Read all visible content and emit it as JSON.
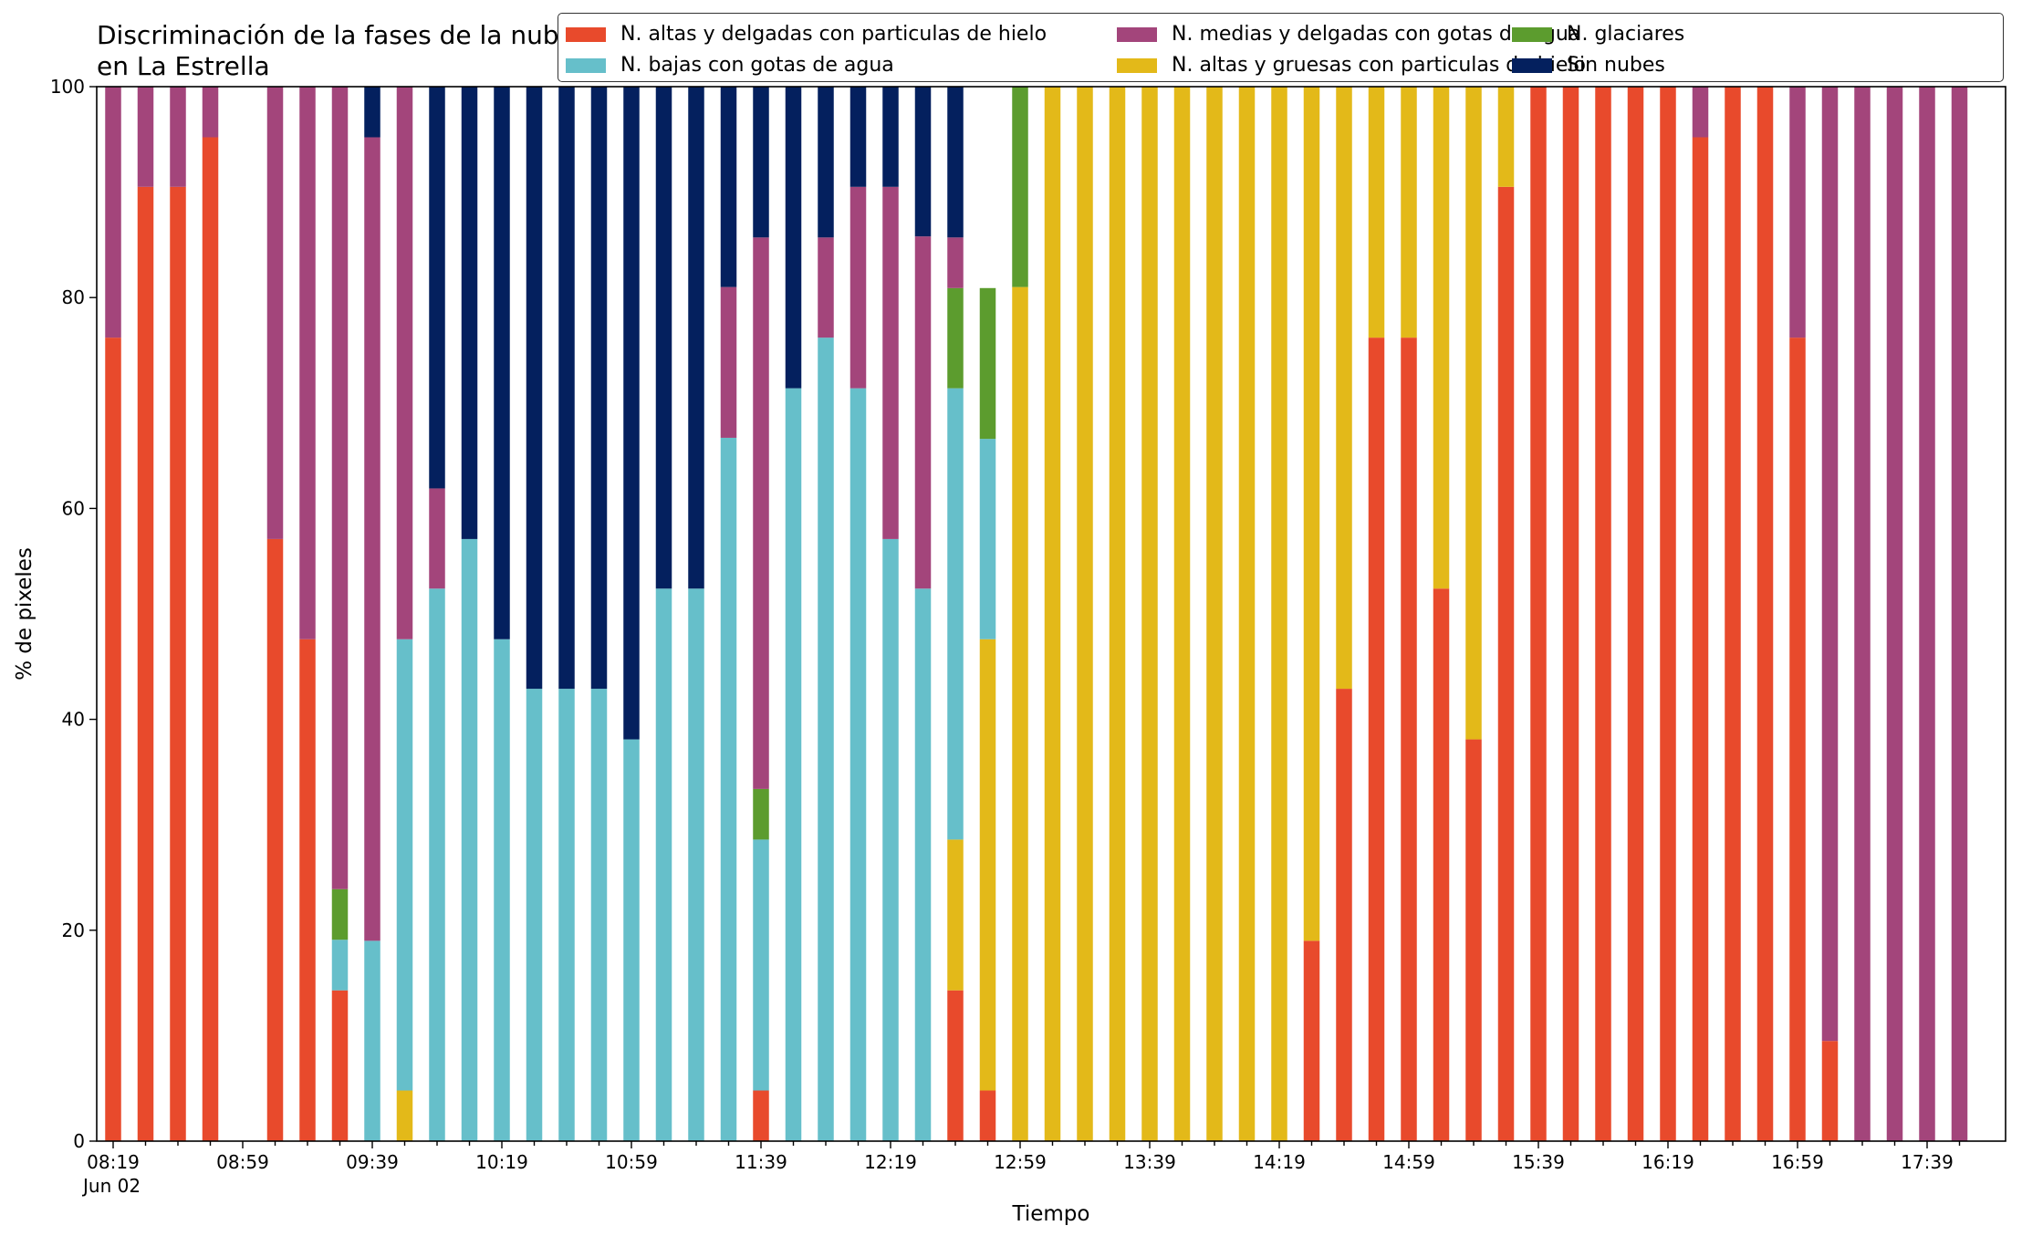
{
  "chart_data": {
    "type": "bar",
    "stacked": true,
    "title": "Discriminación de la fases de la nube en La Estrella",
    "xlabel": "Tiempo",
    "ylabel": "% de pixeles",
    "ylim": [
      0,
      100
    ],
    "yticks": [
      0,
      20,
      40,
      60,
      80,
      100
    ],
    "xtick_labels": [
      {
        "index": 0,
        "label": "08:19"
      },
      {
        "index": 4,
        "label": "08:59"
      },
      {
        "index": 8,
        "label": "09:39"
      },
      {
        "index": 12,
        "label": "10:19"
      },
      {
        "index": 16,
        "label": "10:59"
      },
      {
        "index": 20,
        "label": "11:39"
      },
      {
        "index": 24,
        "label": "12:19"
      },
      {
        "index": 28,
        "label": "12:59"
      },
      {
        "index": 32,
        "label": "13:39"
      },
      {
        "index": 36,
        "label": "14:19"
      },
      {
        "index": 40,
        "label": "14:59"
      },
      {
        "index": 44,
        "label": "15:39"
      },
      {
        "index": 48,
        "label": "16:19"
      },
      {
        "index": 52,
        "label": "16:59"
      },
      {
        "index": 56,
        "label": "17:39"
      }
    ],
    "date_label": "Jun 02",
    "legend_position": "top",
    "categories": [
      "08:19",
      "08:29",
      "08:39",
      "08:49",
      "08:59",
      "09:09",
      "09:19",
      "09:29",
      "09:39",
      "09:49",
      "09:59",
      "10:09",
      "10:19",
      "10:29",
      "10:39",
      "10:49",
      "10:59",
      "11:09",
      "11:19",
      "11:29",
      "11:39",
      "11:49",
      "11:59",
      "12:09",
      "12:19",
      "12:29",
      "12:39",
      "12:49",
      "12:59",
      "13:09",
      "13:19",
      "13:29",
      "13:39",
      "13:49",
      "13:59",
      "14:09",
      "14:19",
      "14:29",
      "14:39",
      "14:49",
      "14:59",
      "15:09",
      "15:19",
      "15:29",
      "15:39",
      "15:49",
      "15:59",
      "16:09",
      "16:19",
      "16:29",
      "16:39",
      "16:49",
      "16:59",
      "17:09",
      "17:19",
      "17:29",
      "17:39",
      "17:49"
    ],
    "bar_present": [
      true,
      true,
      true,
      true,
      false,
      true,
      true,
      true,
      true,
      true,
      true,
      true,
      true,
      true,
      true,
      true,
      true,
      true,
      true,
      true,
      true,
      true,
      true,
      true,
      true,
      true,
      true,
      true,
      true,
      true,
      true,
      true,
      true,
      true,
      true,
      true,
      true,
      true,
      true,
      true,
      true,
      true,
      true,
      true,
      true,
      true,
      true,
      true,
      true,
      true,
      true,
      true,
      true,
      true,
      true,
      true,
      true,
      true
    ],
    "series": [
      {
        "name": "N. altas y delgadas con particulas de hielo",
        "color": "#e84a2c",
        "values": [
          76.2,
          90.5,
          90.5,
          95.2,
          0,
          57.1,
          47.6,
          14.3,
          0,
          0,
          0,
          0,
          0,
          0,
          0,
          0,
          0,
          0,
          0,
          0,
          4.8,
          0,
          0,
          0,
          0,
          0,
          14.3,
          4.8,
          0,
          0,
          0,
          0,
          0,
          0,
          0,
          0,
          0,
          19.0,
          42.9,
          76.2,
          76.2,
          52.4,
          38.1,
          90.5,
          100,
          100,
          100,
          100,
          100,
          95.2,
          100,
          100,
          76.2,
          9.5,
          0,
          0,
          0,
          0
        ]
      },
      {
        "name": "N. altas y gruesas con particulas de hielo",
        "color": "#e3b919",
        "values": [
          0,
          0,
          0,
          0,
          0,
          0,
          0,
          0,
          0,
          4.8,
          0,
          0,
          0,
          0,
          0,
          0,
          0,
          0,
          0,
          0,
          0,
          0,
          0,
          0,
          0,
          0,
          14.3,
          42.8,
          81.0,
          100,
          100,
          100,
          100,
          100,
          100,
          100,
          100,
          81.0,
          57.1,
          23.8,
          23.8,
          47.6,
          61.9,
          9.5,
          0,
          0,
          0,
          0,
          0,
          0,
          0,
          0,
          0,
          0,
          0,
          0,
          0,
          0
        ]
      },
      {
        "name": "N. bajas con gotas de agua",
        "color": "#66bfca",
        "values": [
          0,
          0,
          0,
          0,
          0,
          0,
          0,
          4.8,
          19.0,
          42.8,
          52.4,
          57.1,
          47.6,
          42.9,
          42.9,
          42.9,
          38.1,
          52.4,
          52.4,
          66.7,
          23.8,
          71.4,
          76.2,
          71.4,
          57.1,
          52.4,
          42.8,
          19.0,
          0,
          0,
          0,
          0,
          0,
          0,
          0,
          0,
          0,
          0,
          0,
          0,
          0,
          0,
          0,
          0,
          0,
          0,
          0,
          0,
          0,
          0,
          0,
          0,
          0,
          0,
          0,
          0,
          0,
          0
        ]
      },
      {
        "name": "N. glaciares",
        "color": "#5c9c2e",
        "values": [
          0,
          0,
          0,
          0,
          0,
          0,
          0,
          4.8,
          0,
          0,
          0,
          0,
          0,
          0,
          0,
          0,
          0,
          0,
          0,
          0,
          4.8,
          0,
          0,
          0,
          0,
          0,
          9.5,
          14.3,
          19.0,
          0,
          0,
          0,
          0,
          0,
          0,
          0,
          0,
          0,
          0,
          0,
          0,
          0,
          0,
          0,
          0,
          0,
          0,
          0,
          0,
          0,
          0,
          0,
          0,
          0,
          0,
          0,
          0,
          0
        ]
      },
      {
        "name": "N. medias y delgadas con gotas de agua",
        "color": "#a3457b",
        "values": [
          23.8,
          9.5,
          9.5,
          4.8,
          0,
          42.9,
          52.4,
          76.1,
          76.2,
          52.4,
          9.5,
          0,
          0,
          0,
          0,
          0,
          0,
          0,
          0,
          14.3,
          52.3,
          0,
          9.5,
          19.1,
          33.4,
          33.4,
          4.8,
          0,
          0,
          0,
          0,
          0,
          0,
          0,
          0,
          0,
          0,
          0,
          0,
          0,
          0,
          0,
          0,
          0,
          0,
          0,
          0,
          0,
          0,
          4.8,
          0,
          0,
          23.8,
          90.5,
          100,
          100,
          100,
          100
        ]
      },
      {
        "name": "Sin nubes",
        "color": "#04205e",
        "values": [
          0,
          0,
          0,
          0,
          0,
          0,
          0,
          0,
          4.8,
          0,
          38.1,
          42.9,
          52.4,
          57.1,
          57.1,
          57.1,
          61.9,
          47.6,
          47.6,
          19.0,
          14.3,
          28.6,
          14.3,
          9.5,
          9.5,
          14.2,
          14.3,
          0,
          0,
          0,
          0,
          0,
          0,
          0,
          0,
          0,
          0,
          0,
          0,
          0,
          0,
          0,
          0,
          0,
          0,
          0,
          0,
          0,
          0,
          0,
          0,
          0,
          0,
          0,
          0,
          0,
          0,
          0
        ]
      }
    ],
    "legend_order": [
      0,
      2,
      4,
      1,
      3,
      5
    ]
  }
}
